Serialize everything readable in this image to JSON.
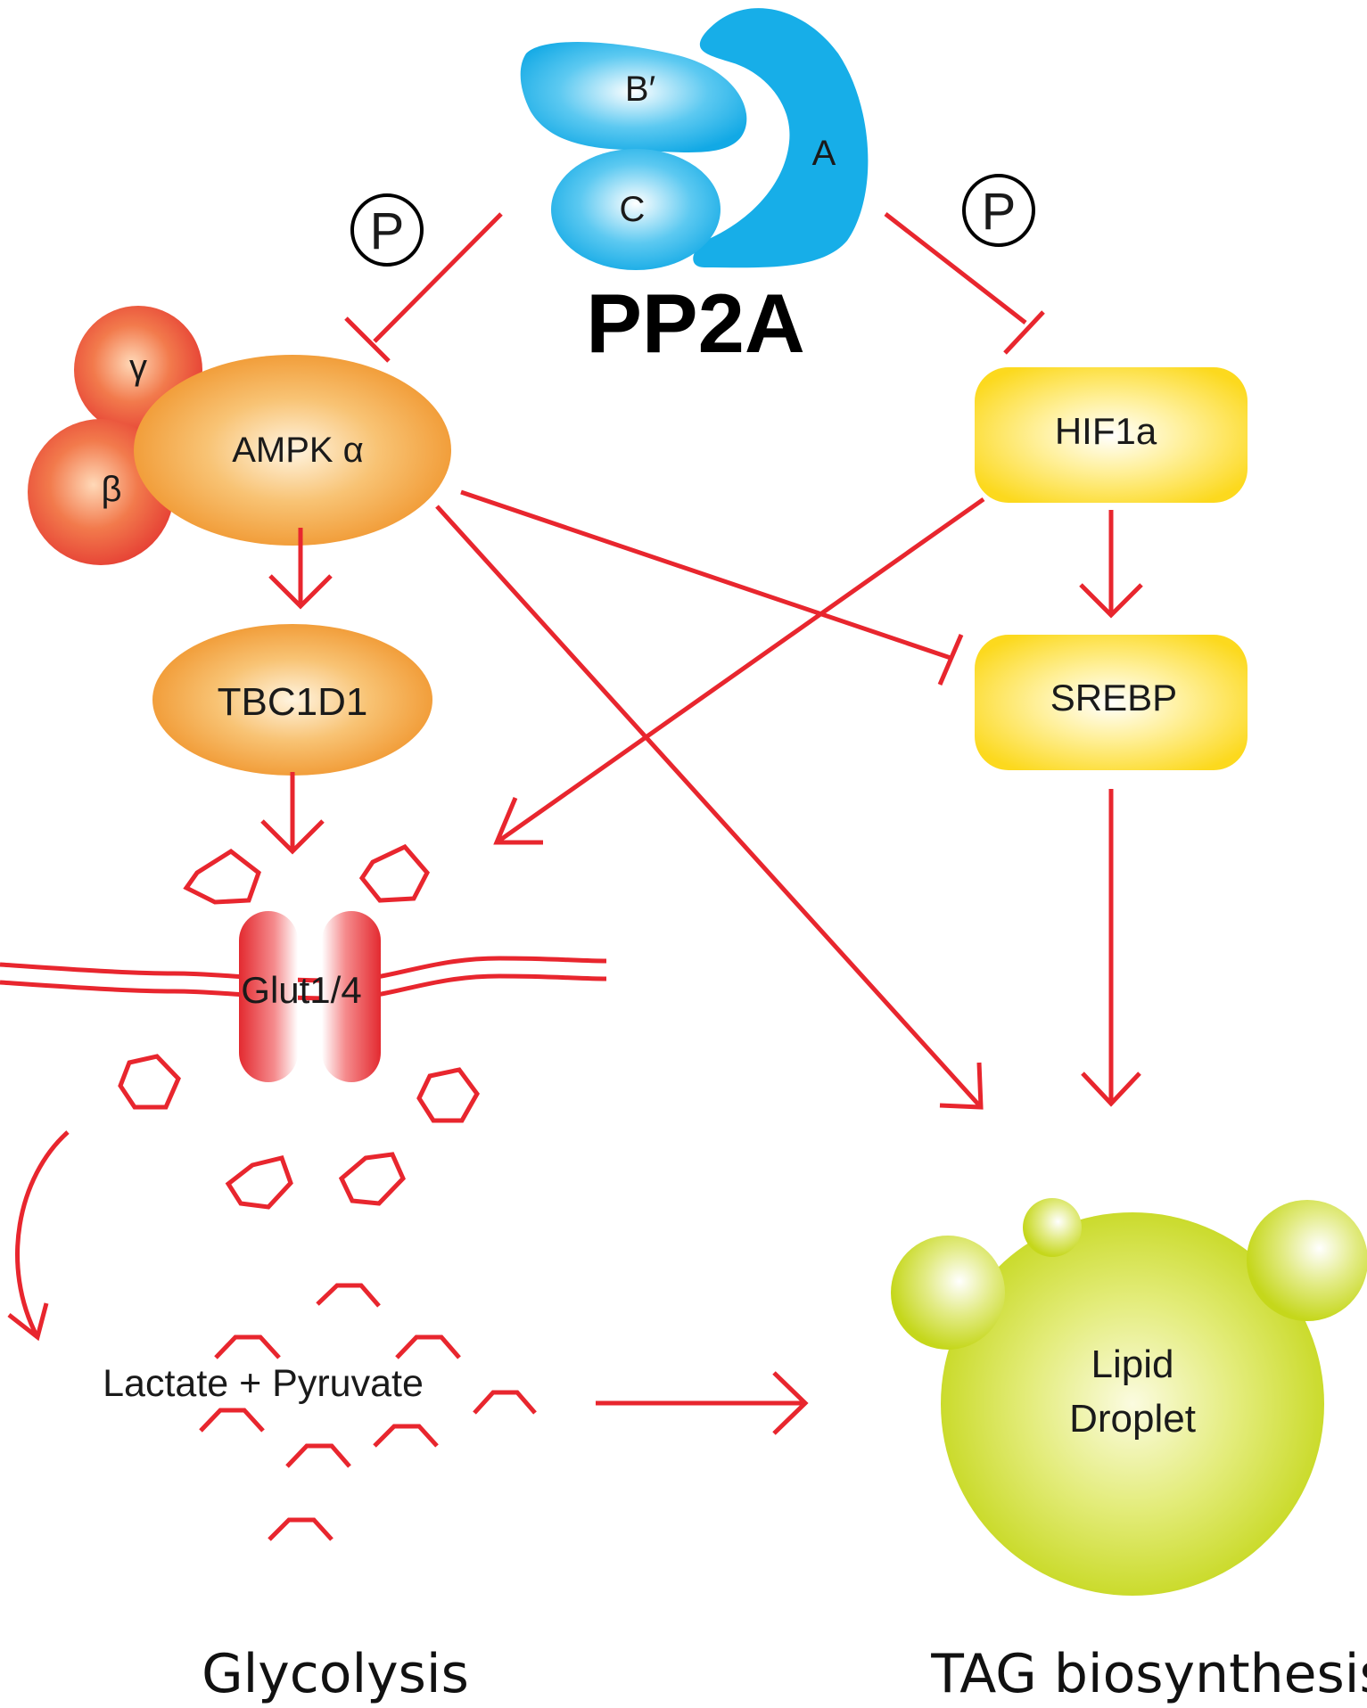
{
  "pp2a": {
    "title": "PP2A",
    "subunit_b": "B′",
    "subunit_a": "A",
    "subunit_c": "C"
  },
  "phospho": {
    "left": "P",
    "right": "P"
  },
  "ampk": {
    "gamma": "γ",
    "beta": "β",
    "alpha": "AMPK α"
  },
  "nodes": {
    "hif1a": "HIF1a",
    "srebp": "SREBP",
    "tbc1d1": "TBC1D1",
    "glut": "Glut1/4",
    "lactate": "Lactate + Pyruvate",
    "lipid_line1": "Lipid",
    "lipid_line2": "Droplet"
  },
  "captions": {
    "left": "Glycolysis",
    "right": "TAG biosynthesis"
  },
  "colors": {
    "arrow": "#e8262e",
    "pp2a": "#17aee8",
    "ampk": "#f19a2e",
    "gamma_beta": "#eb5a3a",
    "hif_srebp": "#fde02a",
    "lipid": "#c8d91c"
  }
}
